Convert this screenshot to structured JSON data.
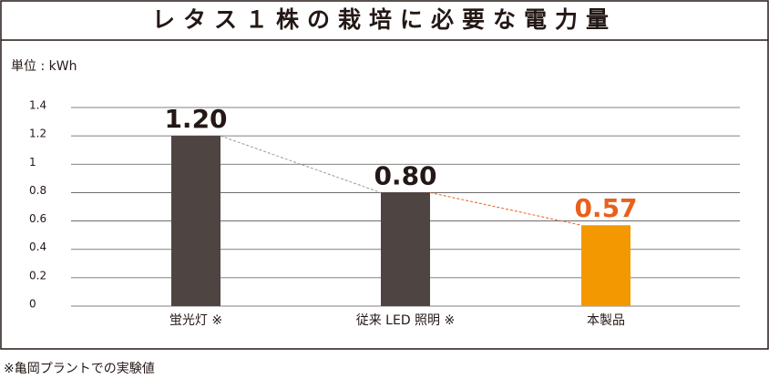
{
  "chart_data": {
    "type": "bar",
    "title": "レタス１株の栽培に必要な電力量",
    "unit_label": "単位 : kWh",
    "categories": [
      "蛍光灯 ※",
      "従来 LED 照明 ※",
      "本製品"
    ],
    "values": [
      1.2,
      0.8,
      0.57
    ],
    "value_labels": [
      "1.20",
      "0.80",
      "0.57"
    ],
    "colors": [
      "#4e4441",
      "#4e4441",
      "#f39800"
    ],
    "value_label_colors": [
      "#231815",
      "#231815",
      "#e8601c"
    ],
    "ylim": [
      0,
      1.4
    ],
    "yticks": [
      0,
      0.2,
      0.4,
      0.6,
      0.8,
      1,
      1.2,
      1.4
    ],
    "grid": true,
    "footnote": "※亀岡プラントでの実験値"
  }
}
